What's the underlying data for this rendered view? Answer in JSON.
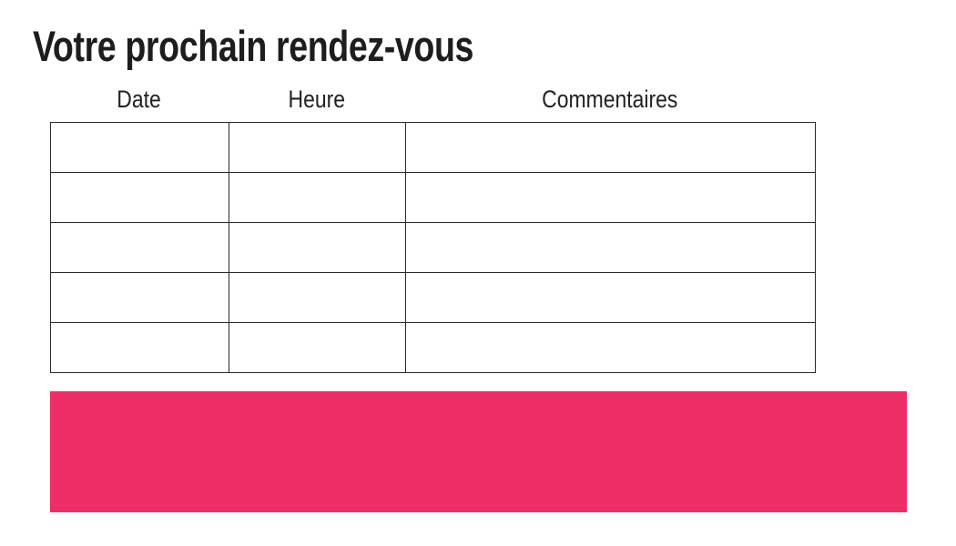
{
  "page": {
    "title": "Votre prochain rendez-vous"
  },
  "table": {
    "headers": [
      "Date",
      "Heure",
      "Commentaires"
    ],
    "rows": [
      [
        "",
        "",
        ""
      ],
      [
        "",
        "",
        ""
      ],
      [
        "",
        "",
        ""
      ],
      [
        "",
        "",
        ""
      ],
      [
        "",
        "",
        ""
      ]
    ]
  },
  "colors": {
    "accent_pink": "#ED2E66",
    "text_primary": "#1D1D1D",
    "table_border": "#2A2A2A"
  }
}
